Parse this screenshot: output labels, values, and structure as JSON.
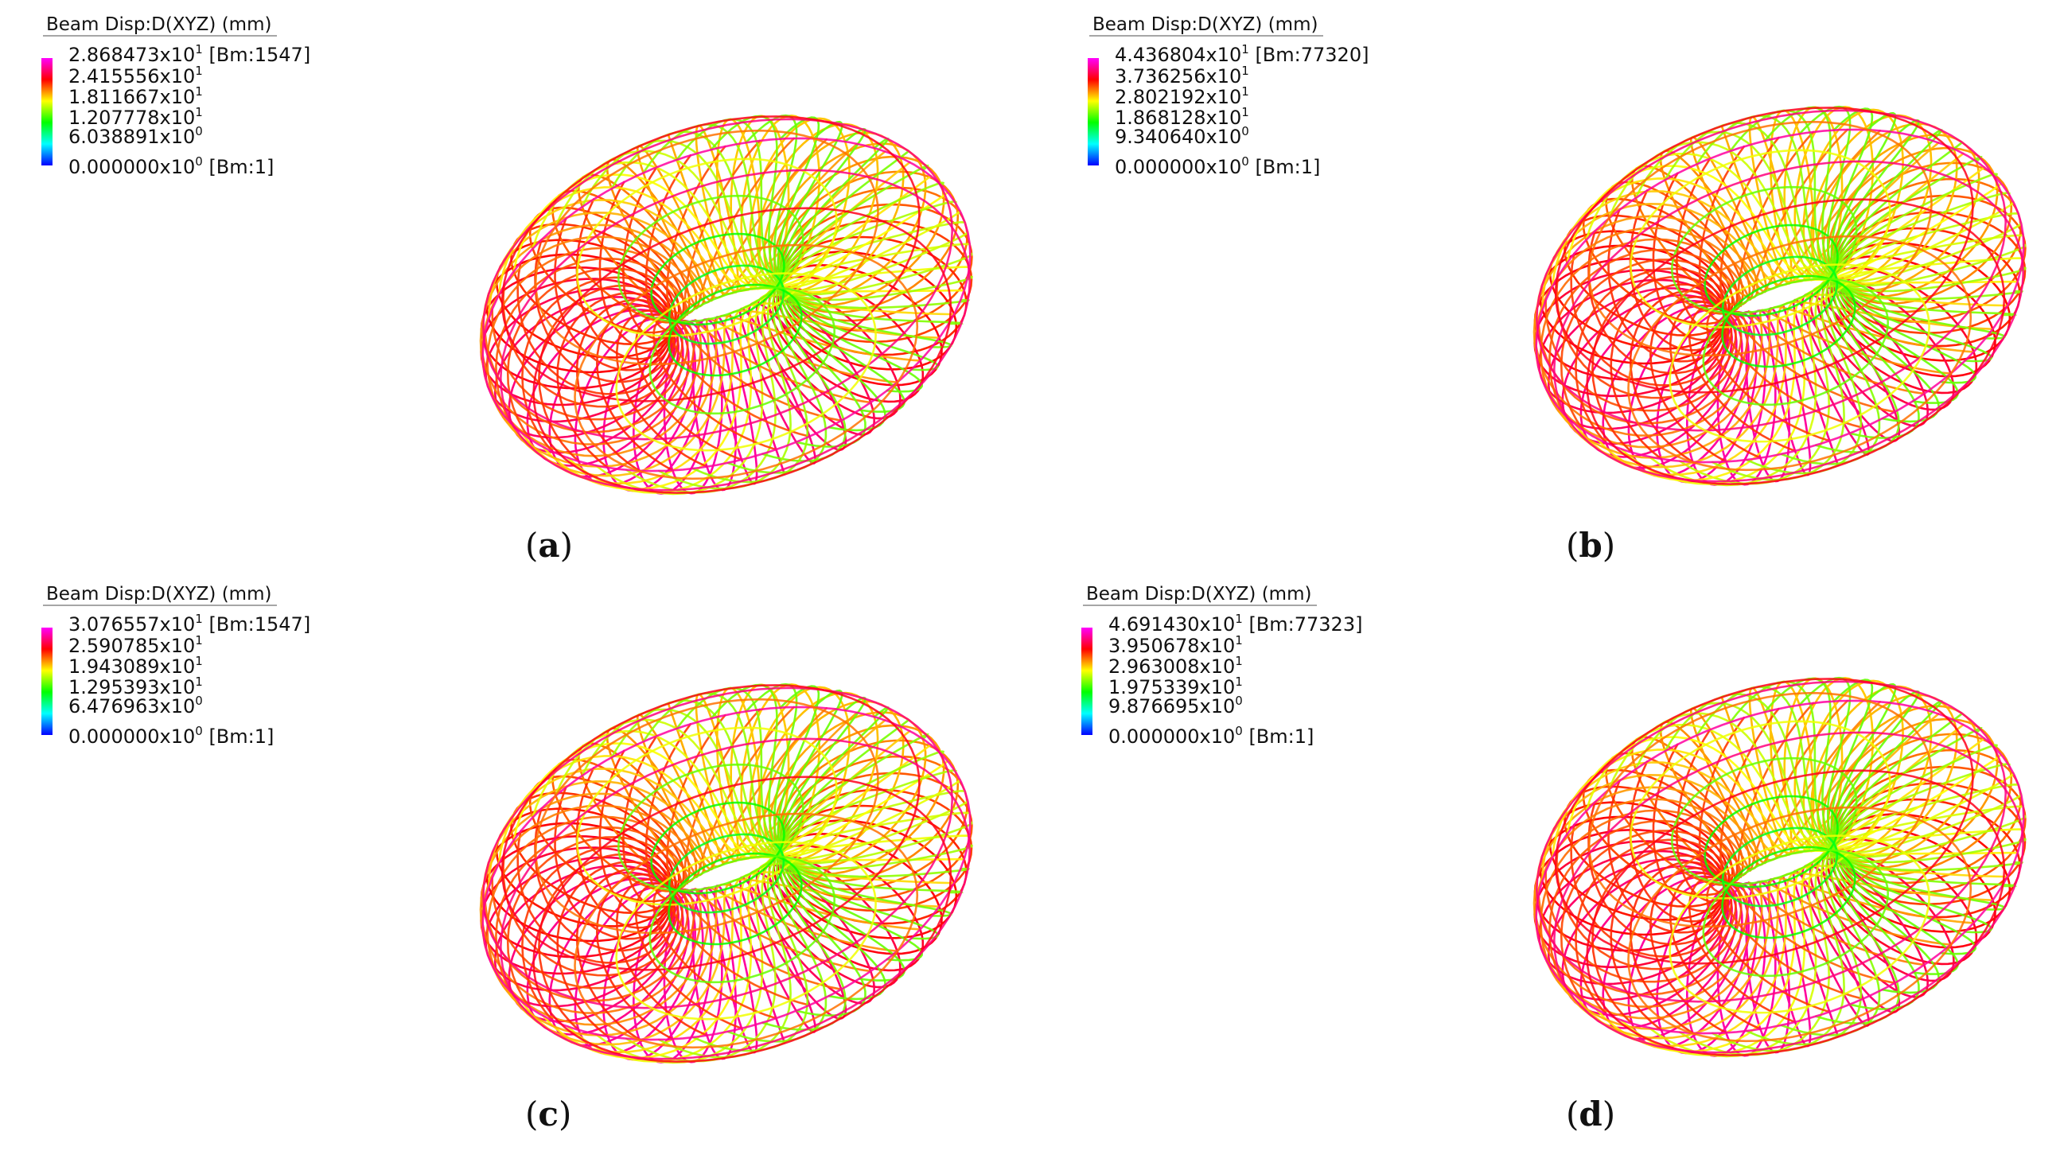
{
  "panels": [
    {
      "id": "a",
      "caption_letter": "a",
      "legend": {
        "title": "Beam Disp:D(XYZ)  (mm)",
        "entries": [
          {
            "mantissa": "2.868473x10",
            "exp": "1",
            "suffix": " [Bm:1547]"
          },
          {
            "mantissa": "2.415556x10",
            "exp": "1",
            "suffix": ""
          },
          {
            "mantissa": "1.811667x10",
            "exp": "1",
            "suffix": ""
          },
          {
            "mantissa": "1.207778x10",
            "exp": "1",
            "suffix": ""
          },
          {
            "mantissa": "6.038891x10",
            "exp": "0",
            "suffix": ""
          },
          {
            "mantissa": "0.000000x10",
            "exp": "0",
            "suffix": " [Bm:1]"
          }
        ]
      }
    },
    {
      "id": "b",
      "caption_letter": "b",
      "legend": {
        "title": "Beam Disp:D(XYZ)  (mm)",
        "entries": [
          {
            "mantissa": "4.436804x10",
            "exp": "1",
            "suffix": " [Bm:77320]"
          },
          {
            "mantissa": "3.736256x10",
            "exp": "1",
            "suffix": ""
          },
          {
            "mantissa": "2.802192x10",
            "exp": "1",
            "suffix": ""
          },
          {
            "mantissa": "1.868128x10",
            "exp": "1",
            "suffix": ""
          },
          {
            "mantissa": "9.340640x10",
            "exp": "0",
            "suffix": ""
          },
          {
            "mantissa": "0.000000x10",
            "exp": "0",
            "suffix": " [Bm:1]"
          }
        ]
      }
    },
    {
      "id": "c",
      "caption_letter": "c",
      "legend": {
        "title": "Beam Disp:D(XYZ)  (mm)",
        "entries": [
          {
            "mantissa": "3.076557x10",
            "exp": "1",
            "suffix": " [Bm:1547]"
          },
          {
            "mantissa": "2.590785x10",
            "exp": "1",
            "suffix": ""
          },
          {
            "mantissa": "1.943089x10",
            "exp": "1",
            "suffix": ""
          },
          {
            "mantissa": "1.295393x10",
            "exp": "1",
            "suffix": ""
          },
          {
            "mantissa": "6.476963x10",
            "exp": "0",
            "suffix": ""
          },
          {
            "mantissa": "0.000000x10",
            "exp": "0",
            "suffix": " [Bm:1]"
          }
        ]
      }
    },
    {
      "id": "d",
      "caption_letter": "d",
      "legend": {
        "title": "Beam Disp:D(XYZ)  (mm)",
        "entries": [
          {
            "mantissa": "4.691430x10",
            "exp": "1",
            "suffix": " [Bm:77323]"
          },
          {
            "mantissa": "3.950678x10",
            "exp": "1",
            "suffix": ""
          },
          {
            "mantissa": "2.963008x10",
            "exp": "1",
            "suffix": ""
          },
          {
            "mantissa": "1.975339x10",
            "exp": "1",
            "suffix": ""
          },
          {
            "mantissa": "9.876695x10",
            "exp": "0",
            "suffix": ""
          },
          {
            "mantissa": "0.000000x10",
            "exp": "0",
            "suffix": " [Bm:1]"
          }
        ]
      }
    }
  ],
  "colormap": [
    "#ff00ff",
    "#ff0000",
    "#ffff00",
    "#00ff00",
    "#00ffff",
    "#0000ff"
  ]
}
